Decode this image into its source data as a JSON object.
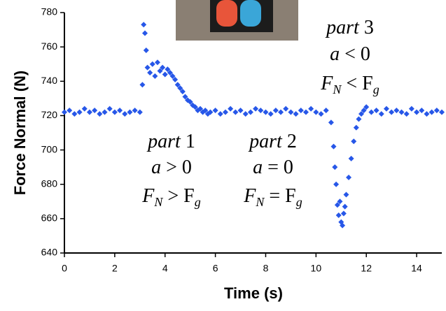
{
  "chart_data": {
    "type": "scatter",
    "x_label": "Time (s)",
    "y_label": "Force Normal (N)",
    "xlim": [
      0,
      15
    ],
    "xticks": [
      0,
      2,
      4,
      6,
      8,
      10,
      12,
      14
    ],
    "ylim": [
      640,
      780
    ],
    "yticks": [
      640,
      660,
      680,
      700,
      720,
      740,
      760,
      780
    ],
    "color": "#2757e8",
    "x": [
      0,
      0.2,
      0.4,
      0.6,
      0.8,
      1.0,
      1.2,
      1.4,
      1.6,
      1.8,
      2.0,
      2.2,
      2.4,
      2.6,
      2.8,
      3.0,
      3.1,
      3.15,
      3.2,
      3.25,
      3.3,
      3.4,
      3.5,
      3.6,
      3.7,
      3.8,
      3.9,
      4.0,
      4.1,
      4.2,
      4.3,
      4.4,
      4.5,
      4.6,
      4.7,
      4.8,
      4.9,
      5.0,
      5.1,
      5.2,
      5.3,
      5.4,
      5.5,
      5.6,
      5.7,
      5.8,
      6.0,
      6.2,
      6.4,
      6.6,
      6.8,
      7.0,
      7.2,
      7.4,
      7.6,
      7.8,
      8.0,
      8.2,
      8.4,
      8.6,
      8.8,
      9.0,
      9.2,
      9.4,
      9.6,
      9.8,
      10.0,
      10.2,
      10.4,
      10.6,
      10.7,
      10.75,
      10.8,
      10.85,
      10.9,
      10.95,
      11.0,
      11.05,
      11.1,
      11.15,
      11.2,
      11.3,
      11.4,
      11.5,
      11.6,
      11.7,
      11.8,
      11.9,
      12.0,
      12.2,
      12.4,
      12.6,
      12.8,
      13.0,
      13.2,
      13.4,
      13.6,
      13.8,
      14.0,
      14.2,
      14.4,
      14.6,
      14.8,
      15.0
    ],
    "values": [
      722,
      723,
      721,
      722,
      724,
      722,
      723,
      721,
      722,
      724,
      722,
      723,
      721,
      722,
      723,
      722,
      738,
      773,
      768,
      758,
      748,
      745,
      750,
      743,
      751,
      746,
      748,
      744,
      747,
      745,
      743,
      741,
      738,
      736,
      734,
      731,
      729,
      728,
      726,
      725,
      723,
      724,
      722,
      723,
      721,
      722,
      723,
      721,
      722,
      724,
      722,
      723,
      721,
      722,
      724,
      723,
      722,
      721,
      723,
      722,
      724,
      722,
      721,
      723,
      722,
      724,
      722,
      721,
      723,
      716,
      702,
      690,
      680,
      668,
      662,
      670,
      658,
      656,
      663,
      667,
      674,
      684,
      695,
      705,
      713,
      718,
      721,
      723,
      725,
      722,
      723,
      721,
      724,
      722,
      723,
      722,
      721,
      724,
      722,
      723,
      721,
      722,
      723,
      722
    ],
    "annotations": [
      {
        "lines": [
          [
            {
              "text": "part"
            },
            {
              "text": " 1"
            }
          ],
          [
            {
              "text": "a"
            },
            {
              "text": " > 0"
            }
          ],
          [
            {
              "text": "F"
            },
            {
              "sub": "N"
            },
            {
              "text": " > F"
            },
            {
              "sub": "g"
            }
          ]
        ]
      },
      {
        "lines": [
          [
            {
              "text": "part"
            },
            {
              "text": " 2"
            }
          ],
          [
            {
              "text": "a"
            },
            {
              "text": " = 0"
            }
          ],
          [
            {
              "text": "F"
            },
            {
              "sub": "N"
            },
            {
              "text": " = F"
            },
            {
              "sub": "g"
            }
          ]
        ]
      },
      {
        "lines": [
          [
            {
              "text": "part"
            },
            {
              "text": " 3"
            }
          ],
          [
            {
              "text": "a"
            },
            {
              "text": " < 0"
            }
          ],
          [
            {
              "text": "F"
            },
            {
              "sub": "N"
            },
            {
              "text": " < F"
            },
            {
              "sub": "g"
            }
          ]
        ]
      }
    ]
  }
}
